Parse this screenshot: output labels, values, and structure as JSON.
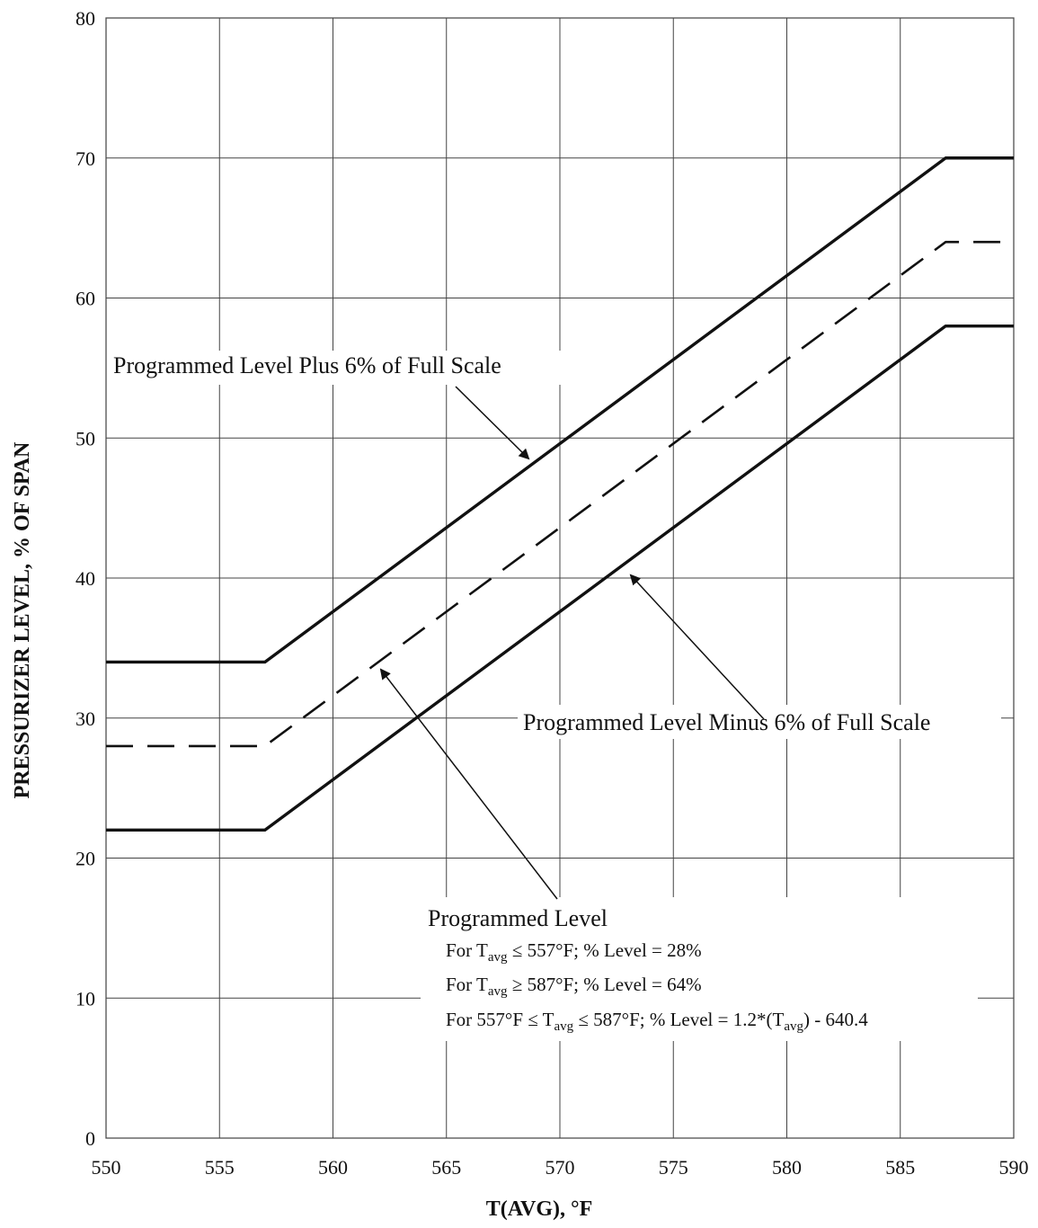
{
  "chart_data": {
    "type": "line",
    "title": "",
    "xlabel": "T(AVG), °F",
    "ylabel": "PRESSURIZER LEVEL, % OF SPAN",
    "xlim": [
      550,
      590
    ],
    "ylim": [
      0,
      80
    ],
    "x_ticks": [
      550,
      555,
      560,
      565,
      570,
      575,
      580,
      585,
      590
    ],
    "y_ticks": [
      0,
      10,
      20,
      30,
      40,
      50,
      60,
      70,
      80
    ],
    "grid": true,
    "series": [
      {
        "style": "solid",
        "x": [
          550,
          557,
          587,
          590
        ],
        "y": [
          34,
          34,
          70,
          70
        ]
      },
      {
        "style": "dashed",
        "x": [
          550,
          557,
          587,
          590
        ],
        "y": [
          28,
          28,
          64,
          64
        ]
      },
      {
        "style": "solid",
        "x": [
          550,
          557,
          587,
          590
        ],
        "y": [
          22,
          22,
          58,
          58
        ]
      }
    ],
    "annotations": {
      "plus": "Programmed Level Plus 6% of Full Scale",
      "minus": "Programmed Level Minus 6% of Full Scale",
      "programmed": "Programmed Level",
      "note1": {
        "pre": "For T",
        "sub": "avg",
        "post": " ≤ 557°F; % Level = 28%"
      },
      "note2": {
        "pre": "For T",
        "sub": "avg",
        "post": " ≥ 587°F; % Level = 64%"
      },
      "note3": {
        "pre": "For 557°F ≤ T",
        "sub": "avg",
        "mid": " ≤ 587°F; % Level = 1.2*(T",
        "sub2": "avg",
        "post": ") - 640.4"
      }
    }
  }
}
